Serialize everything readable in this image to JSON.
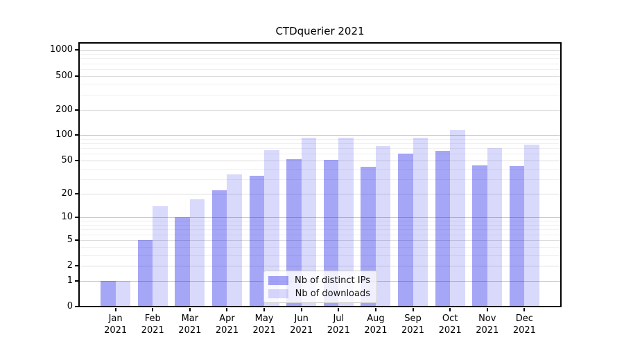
{
  "chart_data": {
    "type": "bar",
    "title": "CTDquerier 2021",
    "categories": [
      "Jan 2021",
      "Feb 2021",
      "Mar 2021",
      "Apr 2021",
      "May 2021",
      "Jun 2021",
      "Jul 2021",
      "Aug 2021",
      "Sep 2021",
      "Oct 2021",
      "Nov 2021",
      "Dec 2021"
    ],
    "series": [
      {
        "name": "Nb of distinct IPs",
        "color": "rgba(0,0,230,0.35)",
        "values": [
          1,
          5,
          10,
          22,
          33,
          52,
          51,
          42,
          61,
          65,
          44,
          43
        ]
      },
      {
        "name": "Nb of downloads",
        "color": "rgba(0,0,230,0.15)",
        "values": [
          1,
          14,
          17,
          34,
          67,
          94,
          94,
          74,
          94,
          114,
          71,
          77
        ]
      }
    ],
    "yscale": "log1p",
    "y_tick_values": [
      0,
      1,
      2,
      5,
      10,
      20,
      50,
      100,
      200,
      500,
      1000
    ],
    "ylim": [
      0,
      1237
    ],
    "grid": true,
    "legend_position": "lower-center-inside",
    "grid_colors": {
      "major": "#c6c6c6",
      "labeled": "#dddddd",
      "minor": "#f0f0f0"
    }
  }
}
